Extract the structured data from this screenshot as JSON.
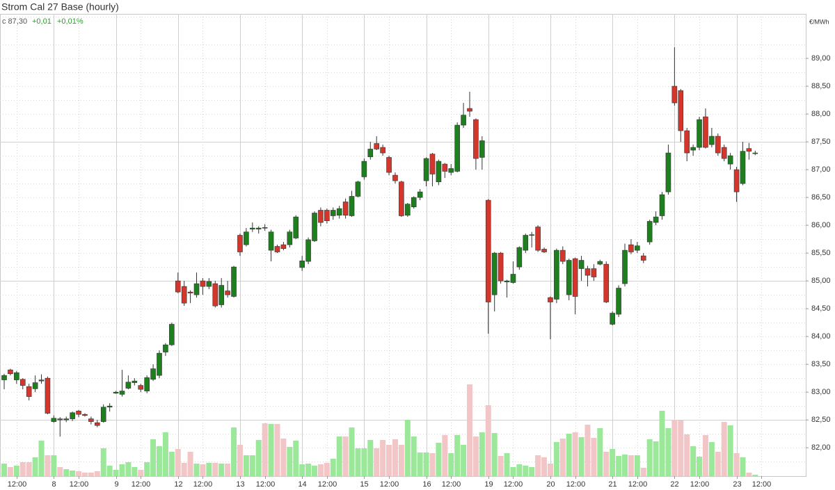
{
  "chart_data": {
    "type": "candlestick",
    "title": "Strom Cal 27 Base (hourly)",
    "last_label": "c 87,30",
    "change": "+0,01",
    "change_pct": "+0,01%",
    "unit": "€/MWh",
    "up_color": "#1d7f1d",
    "down_color": "#d5362c",
    "volume_up_color": "#9be89b",
    "volume_down_color": "#f2c6c6",
    "categories": [
      null,
      null,
      "12:00",
      null,
      null,
      null,
      null,
      null,
      "8",
      null,
      null,
      null,
      "12:00",
      null,
      null,
      null,
      null,
      null,
      "9",
      null,
      null,
      null,
      "12:00",
      null,
      null,
      null,
      null,
      null,
      "12",
      null,
      null,
      null,
      "12:00",
      null,
      null,
      null,
      null,
      null,
      "13",
      null,
      null,
      null,
      "12:00",
      null,
      null,
      null,
      null,
      null,
      "14",
      null,
      null,
      null,
      "12:00",
      null,
      null,
      null,
      null,
      null,
      "15",
      null,
      null,
      null,
      "12:00",
      null,
      null,
      null,
      null,
      null,
      "16",
      null,
      null,
      null,
      "12:00",
      null,
      null,
      null,
      null,
      null,
      "19",
      null,
      null,
      null,
      "12:00",
      null,
      null,
      null,
      null,
      null,
      "20",
      null,
      null,
      null,
      "12:00",
      null,
      null,
      null,
      null,
      null,
      "21",
      null,
      null,
      null,
      "12:00",
      null,
      null,
      null,
      null,
      null,
      "22",
      null,
      null,
      null,
      "12:00",
      null,
      null,
      null,
      null,
      null,
      "23",
      null,
      null,
      null,
      "12:00"
    ],
    "open": [
      83.22,
      83.4,
      83.22,
      83.23,
      83.1,
      83.06,
      83.2,
      83.25,
      82.47,
      82.52,
      82.5,
      82.52,
      82.66,
      82.6,
      82.52,
      82.45,
      82.47,
      82.73,
      82.98,
      82.96,
      83.07,
      83.17,
      83.12,
      83.02,
      83.23,
      83.3,
      83.72,
      83.85,
      85.0,
      84.9,
      84.8,
      84.75,
      85.0,
      84.9,
      84.95,
      84.57,
      84.82,
      84.72,
      85.82,
      85.65,
      85.93,
      85.93,
      85.96,
      85.55,
      85.62,
      85.65,
      85.65,
      85.77,
      85.24,
      85.35,
      85.72,
      86.27,
      86.27,
      86.17,
      86.18,
      86.42,
      86.17,
      86.52,
      86.87,
      87.23,
      87.47,
      87.4,
      87.22,
      86.9,
      86.78,
      86.18,
      86.33,
      86.5,
      86.8,
      87.28,
      86.78,
      87.1,
      86.95,
      86.97,
      87.8,
      88.1,
      87.9,
      87.22,
      86.45,
      84.75,
      85.5,
      84.98,
      84.97,
      85.25,
      85.55,
      85.82,
      85.97,
      85.57,
      84.7,
      84.67,
      85.55,
      84.75,
      85.4,
      85.22,
      85.22,
      85.22,
      85.3,
      85.3,
      84.22,
      84.4,
      84.95,
      85.65,
      85.55,
      85.45,
      85.7,
      86.05,
      86.17,
      86.6,
      88.5,
      88.42,
      87.7,
      87.35,
      87.4,
      87.95,
      87.45,
      87.6,
      87.4,
      87.1,
      87.0,
      86.75,
      87.38,
      87.29,
      null
    ],
    "high": [
      83.33,
      83.42,
      83.38,
      83.25,
      83.15,
      83.3,
      83.32,
      83.28,
      82.58,
      82.55,
      82.56,
      82.65,
      82.68,
      82.62,
      82.56,
      82.5,
      82.78,
      82.8,
      83.02,
      83.4,
      83.3,
      83.25,
      83.15,
      83.3,
      83.5,
      83.75,
      83.88,
      84.25,
      85.15,
      85.0,
      84.83,
      85.15,
      85.05,
      85.05,
      85.0,
      85.05,
      85.0,
      85.27,
      85.85,
      85.95,
      86.05,
      85.98,
      86.02,
      85.92,
      85.65,
      85.7,
      85.92,
      86.18,
      85.45,
      85.78,
      86.25,
      86.32,
      86.3,
      86.32,
      86.35,
      86.48,
      86.62,
      86.8,
      87.2,
      87.5,
      87.6,
      87.45,
      87.25,
      86.95,
      86.8,
      86.4,
      86.52,
      86.65,
      87.22,
      87.3,
      87.18,
      87.12,
      87.1,
      87.85,
      88.2,
      88.4,
      87.92,
      87.6,
      86.47,
      85.52,
      85.52,
      85.02,
      85.35,
      85.62,
      85.85,
      85.88,
      86.0,
      85.6,
      84.72,
      85.58,
      85.62,
      85.4,
      85.42,
      85.45,
      85.27,
      85.3,
      85.38,
      85.35,
      84.45,
      84.92,
      85.67,
      85.75,
      85.7,
      85.5,
      86.1,
      86.25,
      86.6,
      87.45,
      89.2,
      88.45,
      87.75,
      87.45,
      87.95,
      88.1,
      87.75,
      87.65,
      87.45,
      87.3,
      87.05,
      87.5,
      87.48,
      87.34,
      null
    ],
    "low": [
      83.05,
      83.3,
      83.15,
      83.05,
      82.85,
      83.0,
      83.15,
      82.6,
      82.45,
      82.2,
      82.46,
      82.48,
      82.55,
      82.56,
      82.42,
      82.37,
      82.45,
      82.65,
      82.97,
      82.92,
      83.05,
      83.12,
      83.0,
      82.98,
      83.2,
      83.25,
      83.65,
      83.83,
      84.78,
      84.55,
      84.6,
      84.7,
      84.75,
      84.85,
      84.52,
      84.52,
      84.7,
      84.7,
      85.45,
      85.62,
      85.88,
      85.85,
      85.9,
      85.35,
      85.5,
      85.55,
      85.6,
      85.75,
      85.18,
      85.3,
      85.7,
      85.98,
      86.03,
      86.1,
      86.12,
      86.12,
      86.15,
      86.5,
      86.82,
      87.18,
      87.35,
      87.25,
      86.9,
      86.75,
      86.15,
      86.15,
      86.3,
      86.45,
      86.7,
      86.7,
      86.72,
      86.85,
      86.9,
      86.95,
      87.75,
      87.95,
      87.0,
      87.0,
      84.05,
      84.45,
      84.95,
      84.7,
      84.95,
      85.2,
      85.5,
      85.6,
      85.52,
      85.5,
      83.95,
      84.6,
      85.3,
      84.65,
      84.4,
      85.0,
      84.9,
      85.0,
      85.28,
      84.6,
      84.2,
      84.35,
      84.9,
      85.48,
      85.5,
      85.32,
      85.65,
      86.0,
      86.1,
      86.55,
      88.15,
      87.5,
      87.15,
      87.25,
      87.35,
      87.38,
      87.4,
      87.25,
      87.15,
      87.0,
      86.42,
      86.72,
      87.18,
      87.26,
      null
    ],
    "close": [
      83.3,
      83.33,
      83.35,
      83.12,
      82.92,
      83.17,
      83.22,
      82.62,
      82.53,
      82.5,
      82.52,
      82.63,
      82.6,
      82.58,
      82.47,
      82.4,
      82.73,
      82.75,
      83.0,
      83.02,
      83.18,
      83.2,
      83.05,
      83.26,
      83.42,
      83.7,
      83.85,
      84.22,
      84.8,
      84.6,
      84.78,
      84.95,
      84.9,
      84.99,
      84.55,
      84.92,
      84.75,
      85.25,
      85.52,
      85.88,
      85.95,
      85.95,
      85.95,
      85.88,
      85.52,
      85.58,
      85.88,
      86.15,
      85.36,
      85.74,
      86.22,
      86.05,
      86.08,
      86.27,
      86.3,
      86.18,
      86.52,
      86.78,
      87.15,
      87.37,
      87.37,
      87.3,
      86.95,
      86.8,
      86.17,
      86.38,
      86.5,
      86.6,
      87.2,
      86.92,
      87.15,
      86.97,
      87.02,
      87.8,
      87.98,
      88.05,
      87.2,
      87.52,
      84.62,
      85.5,
      85.0,
      85.0,
      85.12,
      85.6,
      85.82,
      85.83,
      85.55,
      85.52,
      84.62,
      85.55,
      85.35,
      85.37,
      84.72,
      85.37,
      85.1,
      85.07,
      85.35,
      84.62,
      84.42,
      84.87,
      85.55,
      85.52,
      85.63,
      85.37,
      86.07,
      86.15,
      86.55,
      87.3,
      88.2,
      87.7,
      87.3,
      87.4,
      87.9,
      87.4,
      87.6,
      87.3,
      87.2,
      87.25,
      86.6,
      87.33,
      87.33,
      87.3,
      null
    ],
    "volume": [
      18,
      13,
      15,
      20,
      20,
      27,
      51,
      30,
      30,
      13,
      10,
      8,
      7,
      5,
      5,
      7,
      40,
      15,
      9,
      17,
      20,
      13,
      9,
      20,
      53,
      43,
      63,
      35,
      39,
      19,
      35,
      18,
      17,
      19,
      19,
      18,
      18,
      70,
      45,
      30,
      30,
      52,
      76,
      75,
      75,
      54,
      42,
      51,
      17,
      18,
      15,
      17,
      19,
      25,
      57,
      57,
      70,
      40,
      40,
      52,
      40,
      52,
      45,
      53,
      45,
      81,
      57,
      34,
      34,
      33,
      48,
      59,
      33,
      59,
      45,
      132,
      57,
      63,
      102,
      62,
      29,
      33,
      13,
      17,
      15,
      13,
      30,
      27,
      18,
      49,
      54,
      61,
      63,
      56,
      74,
      55,
      69,
      35,
      39,
      29,
      31,
      30,
      30,
      12,
      53,
      50,
      94,
      69,
      81,
      80,
      60,
      43,
      28,
      59,
      49,
      35,
      78,
      73,
      33,
      27,
      5,
      2,
      null
    ],
    "vlim": [
      0,
      200
    ],
    "ylim": [
      81.49,
      89.8
    ],
    "yticks": [
      {
        "value": 82,
        "label": "82,00"
      },
      {
        "value": 82.5,
        "label": "82,50"
      },
      {
        "value": 83,
        "label": "83,00"
      },
      {
        "value": 83.5,
        "label": "83,50"
      },
      {
        "value": 84,
        "label": "84,00"
      },
      {
        "value": 84.5,
        "label": "84,50"
      },
      {
        "value": 85,
        "label": "85,00"
      },
      {
        "value": 85.5,
        "label": "85,50"
      },
      {
        "value": 86,
        "label": "86,00"
      },
      {
        "value": 86.5,
        "label": "86,50"
      },
      {
        "value": 87,
        "label": "87,00"
      },
      {
        "value": 87.5,
        "label": "87,50"
      },
      {
        "value": 88,
        "label": "88,00"
      },
      {
        "value": 88.5,
        "label": "88,50"
      },
      {
        "value": 89,
        "label": "89,00"
      }
    ],
    "yminor": [
      81.75,
      82.25,
      82.75,
      83.25,
      83.75,
      84.25,
      84.75,
      85.25,
      85.75,
      86.25,
      86.75,
      87.25,
      87.75,
      88.25,
      88.75,
      89.25,
      89.75
    ],
    "ymajor": [
      82.5,
      85,
      87.5
    ],
    "grid": true
  }
}
